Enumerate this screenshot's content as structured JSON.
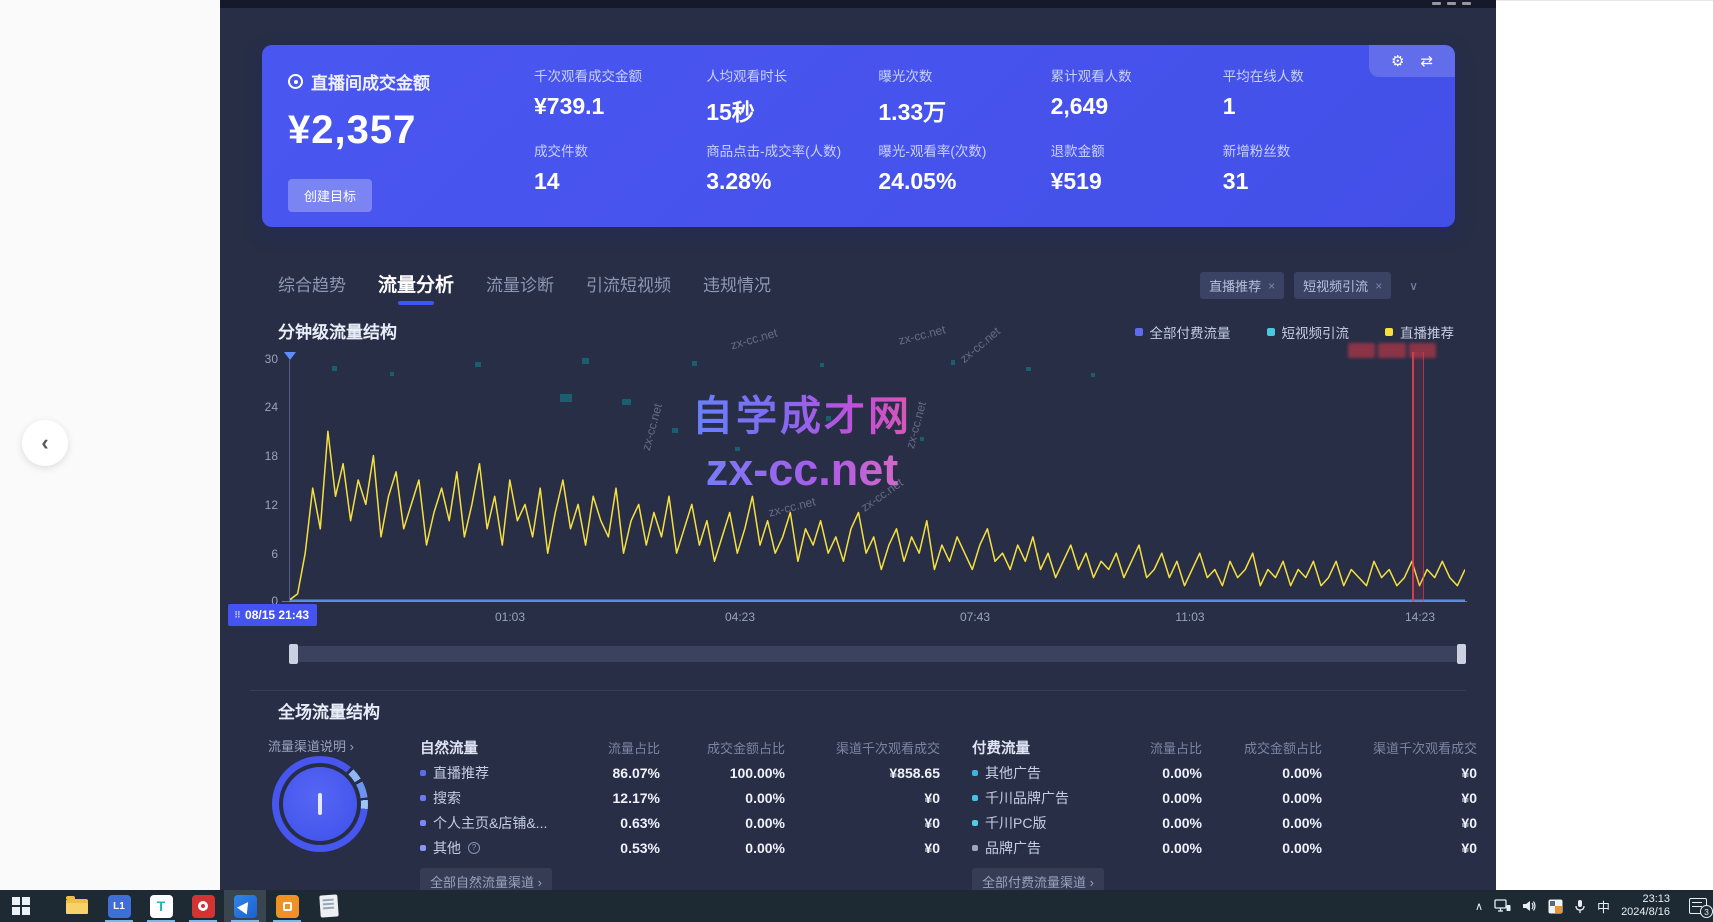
{
  "hero": {
    "primary": {
      "label": "直播间成交金额",
      "value": "¥2,357",
      "button": "创建目标"
    },
    "metrics": [
      {
        "label": "千次观看成交金额",
        "value": "¥739.1"
      },
      {
        "label": "人均观看时长",
        "value": "15秒"
      },
      {
        "label": "曝光次数",
        "value": "1.33万"
      },
      {
        "label": "累计观看人数",
        "value": "2,649"
      },
      {
        "label": "平均在线人数",
        "value": "1"
      },
      {
        "label": "成交件数",
        "value": "14"
      },
      {
        "label": "商品点击-成交率(人数)",
        "value": "3.28%"
      },
      {
        "label": "曝光-观看率(次数)",
        "value": "24.05%"
      },
      {
        "label": "退款金额",
        "value": "¥519"
      },
      {
        "label": "新增粉丝数",
        "value": "31"
      }
    ],
    "tools": {
      "gear": "⚙",
      "swap": "⇄"
    }
  },
  "tabs": [
    {
      "label": "综合趋势"
    },
    {
      "label": "流量分析"
    },
    {
      "label": "流量诊断"
    },
    {
      "label": "引流短视频"
    },
    {
      "label": "违规情况"
    }
  ],
  "filters": {
    "tag1": "直播推荐",
    "tag2": "短视频引流",
    "close": "×",
    "caret": "∨"
  },
  "chart_section": {
    "title": "分钟级流量结构"
  },
  "chart_data": {
    "type": "line",
    "title": "分钟级流量结构",
    "x_start_label": "08/15 21:43",
    "x_ticks": [
      "01:03",
      "04:23",
      "07:43",
      "11:03",
      "14:23"
    ],
    "y_ticks": [
      "0",
      "6",
      "12",
      "18",
      "24",
      "30"
    ],
    "ylim": [
      0,
      30
    ],
    "grid": false,
    "legend_position": "top-right",
    "series": [
      {
        "name": "直播推荐",
        "color": "#f6e041",
        "values": [
          0.3,
          1,
          6,
          14,
          9,
          21,
          13,
          17,
          10,
          15,
          12,
          18,
          8,
          13,
          16,
          9,
          12,
          15,
          7,
          11,
          14,
          10,
          16,
          8,
          12,
          17,
          9,
          13,
          7,
          15,
          10,
          12,
          8,
          14,
          6,
          11,
          15,
          9,
          12,
          7,
          13,
          10,
          8,
          14,
          6,
          10,
          12,
          7,
          11,
          8,
          13,
          6,
          9,
          12,
          7,
          10,
          5,
          8,
          11,
          6,
          9,
          13,
          7,
          10,
          6,
          8,
          11,
          5,
          9,
          7,
          10,
          6,
          8,
          5,
          9,
          11,
          6,
          8,
          4,
          7,
          9,
          5,
          8,
          6,
          10,
          4,
          7,
          5,
          8,
          6,
          4,
          7,
          9,
          5,
          6,
          4,
          7,
          5,
          8,
          4,
          6,
          3,
          5,
          7,
          4,
          6,
          3,
          5,
          4,
          6,
          3,
          5,
          7,
          3,
          4,
          6,
          3,
          5,
          2,
          4,
          6,
          3,
          4,
          2,
          5,
          3,
          4,
          6,
          2,
          4,
          3,
          5,
          2,
          4,
          3,
          5,
          2,
          3,
          5,
          2,
          4,
          3,
          2,
          5,
          3,
          4,
          2,
          3,
          5,
          2,
          4,
          3,
          5,
          3,
          2,
          4
        ]
      },
      {
        "name": "短视频引流",
        "color": "#49c8e0",
        "values": [
          0,
          0
        ]
      },
      {
        "name": "全部付费流量",
        "color": "#5f6cf2",
        "values": [
          0,
          0
        ]
      }
    ],
    "legend": [
      {
        "label": "全部付费流量",
        "color": "#5f6cf2"
      },
      {
        "label": "短视频引流",
        "color": "#49c8e0"
      },
      {
        "label": "直播推荐",
        "color": "#f6e041"
      }
    ]
  },
  "structure_section": {
    "title": "全场流量结构",
    "channel_link": "流量渠道说明 ›",
    "columns": {
      "traffic": "流量占比",
      "gmv": "成交金额占比",
      "per_thousand": "渠道千次观看成交"
    },
    "natural": {
      "group": "自然流量",
      "rows": [
        {
          "name": "直播推荐",
          "traffic": "86.07%",
          "gmv": "100.00%",
          "per_thousand": "¥858.65",
          "dot": "#5b6cf0"
        },
        {
          "name": "搜索",
          "traffic": "12.17%",
          "gmv": "0.00%",
          "per_thousand": "¥0",
          "dot": "#6a7af3"
        },
        {
          "name": "个人主页&店铺&...",
          "traffic": "0.63%",
          "gmv": "0.00%",
          "per_thousand": "¥0",
          "dot": "#7c88f5"
        },
        {
          "name": "其他",
          "traffic": "0.53%",
          "gmv": "0.00%",
          "per_thousand": "¥0",
          "dot": "#8a93f7"
        }
      ],
      "all_link": "全部自然流量渠道 ›"
    },
    "paid": {
      "group": "付费流量",
      "rows": [
        {
          "name": "其他广告",
          "traffic": "0.00%",
          "gmv": "0.00%",
          "per_thousand": "¥0",
          "dot": "#38b6e0"
        },
        {
          "name": "千川品牌广告",
          "traffic": "0.00%",
          "gmv": "0.00%",
          "per_thousand": "¥0",
          "dot": "#45c0e6"
        },
        {
          "name": "千川PC版",
          "traffic": "0.00%",
          "gmv": "0.00%",
          "per_thousand": "¥0",
          "dot": "#52cae9"
        },
        {
          "name": "品牌广告",
          "traffic": "0.00%",
          "gmv": "0.00%",
          "per_thousand": "¥0",
          "dot": "#9aa6c0"
        }
      ],
      "all_link": "全部付费流量渠道 ›"
    }
  },
  "watermark": {
    "title": "自学成才网",
    "site": "zx-cc.net",
    "small": "zx-cc.net"
  },
  "nav": {
    "back": "‹"
  },
  "taskbar": {
    "ime": "中",
    "time": "23:13",
    "date": "2024/8/16",
    "badge": "3",
    "app_l1": "L1",
    "app_t": "T"
  }
}
